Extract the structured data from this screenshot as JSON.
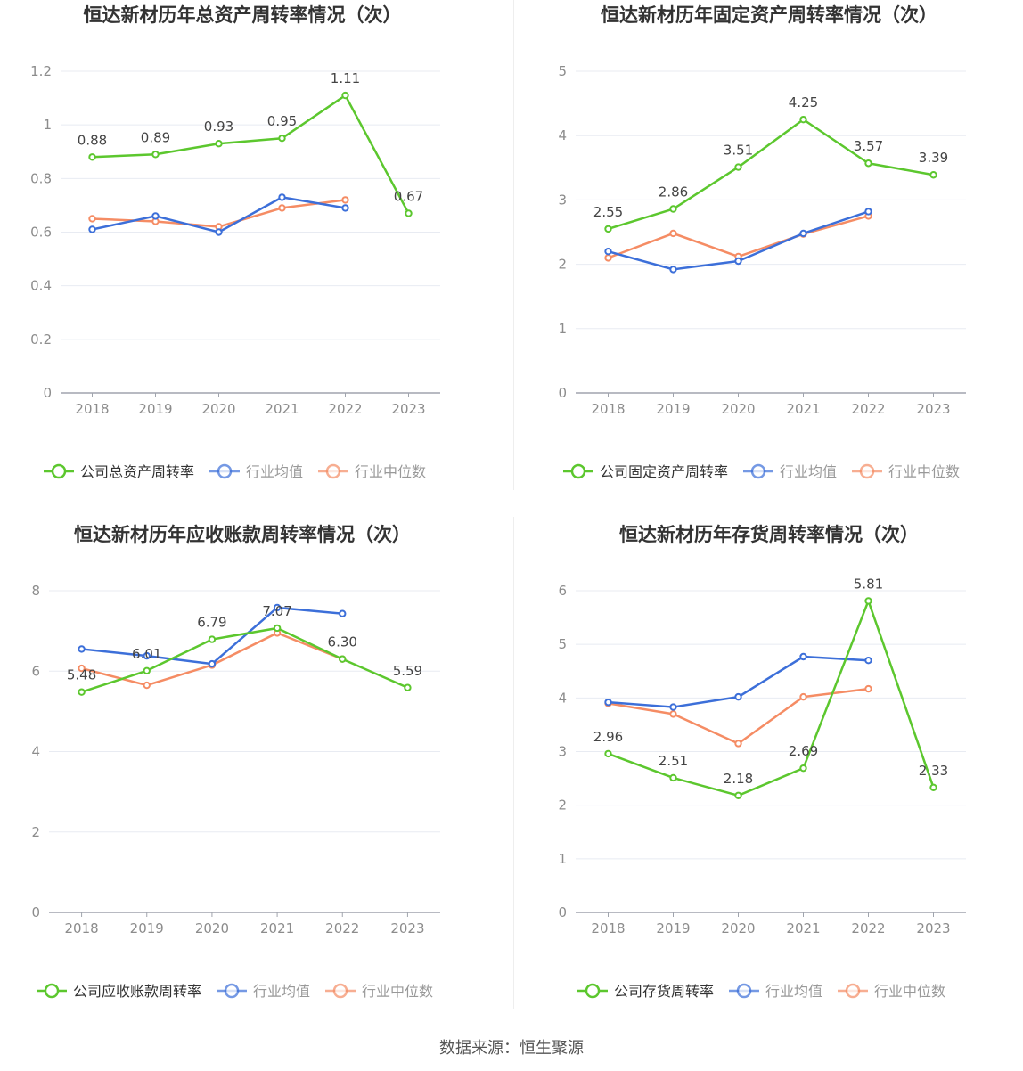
{
  "colors": {
    "company": "#5cc72e",
    "average": "#3c6fd9",
    "median": "#f58c64",
    "grid": "#e8ebf2",
    "axis": "#a0a4ad"
  },
  "footer": "数据来源：恒生聚源",
  "chart_data": [
    {
      "type": "line",
      "title": "恒达新材历年总资产周转率情况（次）",
      "categories": [
        "2018",
        "2019",
        "2020",
        "2021",
        "2022",
        "2023"
      ],
      "ylim": [
        0,
        1.2
      ],
      "yticks": [
        "0",
        "0.2",
        "0.4",
        "0.6",
        "0.8",
        "1",
        "1.2"
      ],
      "ytick_values": [
        0,
        0.2,
        0.4,
        0.6,
        0.8,
        1.0,
        1.2
      ],
      "grid": true,
      "legend_position": "bottom",
      "series": [
        {
          "name": "公司总资产周转率",
          "role": "company",
          "values": [
            0.88,
            0.89,
            0.93,
            0.95,
            1.11,
            0.67
          ],
          "labels": [
            "0.88",
            "0.89",
            "0.93",
            "0.95",
            "1.11",
            "0.67"
          ]
        },
        {
          "name": "行业均值",
          "role": "average",
          "values": [
            0.61,
            0.66,
            0.6,
            0.73,
            0.69,
            null
          ]
        },
        {
          "name": "行业中位数",
          "role": "median",
          "values": [
            0.65,
            0.64,
            0.62,
            0.69,
            0.72,
            null
          ]
        }
      ]
    },
    {
      "type": "line",
      "title": "恒达新材历年固定资产周转率情况（次）",
      "categories": [
        "2018",
        "2019",
        "2020",
        "2021",
        "2022",
        "2023"
      ],
      "ylim": [
        0,
        5
      ],
      "yticks": [
        "0",
        "1",
        "2",
        "3",
        "4",
        "5"
      ],
      "ytick_values": [
        0,
        1,
        2,
        3,
        4,
        5
      ],
      "grid": true,
      "legend_position": "bottom",
      "series": [
        {
          "name": "公司固定资产周转率",
          "role": "company",
          "values": [
            2.55,
            2.86,
            3.51,
            4.25,
            3.57,
            3.39
          ],
          "labels": [
            "2.55",
            "2.86",
            "3.51",
            "4.25",
            "3.57",
            "3.39"
          ]
        },
        {
          "name": "行业均值",
          "role": "average",
          "values": [
            2.2,
            1.92,
            2.05,
            2.48,
            2.82,
            null
          ]
        },
        {
          "name": "行业中位数",
          "role": "median",
          "values": [
            2.1,
            2.48,
            2.12,
            2.47,
            2.75,
            null
          ]
        }
      ]
    },
    {
      "type": "line",
      "title": "恒达新材历年应收账款周转率情况（次）",
      "categories": [
        "2018",
        "2019",
        "2020",
        "2021",
        "2022",
        "2023"
      ],
      "ylim": [
        0,
        8
      ],
      "yticks": [
        "0",
        "2",
        "4",
        "6",
        "8"
      ],
      "ytick_values": [
        0,
        2,
        4,
        6,
        8
      ],
      "grid": true,
      "legend_position": "bottom",
      "series": [
        {
          "name": "公司应收账款周转率",
          "role": "company",
          "values": [
            5.48,
            6.01,
            6.79,
            7.07,
            6.3,
            5.59
          ],
          "labels": [
            "5.48",
            "6.01",
            "6.79",
            "7.07",
            "6.30",
            "5.59"
          ]
        },
        {
          "name": "行业均值",
          "role": "average",
          "values": [
            6.55,
            6.38,
            6.18,
            7.58,
            7.43,
            null
          ]
        },
        {
          "name": "行业中位数",
          "role": "median",
          "values": [
            6.07,
            5.65,
            6.15,
            6.95,
            6.3,
            null
          ]
        }
      ]
    },
    {
      "type": "line",
      "title": "恒达新材历年存货周转率情况（次）",
      "categories": [
        "2018",
        "2019",
        "2020",
        "2021",
        "2022",
        "2023"
      ],
      "ylim": [
        0,
        6
      ],
      "yticks": [
        "0",
        "1",
        "2",
        "3",
        "4",
        "5",
        "6"
      ],
      "ytick_values": [
        0,
        1,
        2,
        3,
        4,
        5,
        6
      ],
      "grid": true,
      "legend_position": "bottom",
      "series": [
        {
          "name": "公司存货周转率",
          "role": "company",
          "values": [
            2.96,
            2.51,
            2.18,
            2.69,
            5.81,
            2.33
          ],
          "labels": [
            "2.96",
            "2.51",
            "2.18",
            "2.69",
            "5.81",
            "2.33"
          ]
        },
        {
          "name": "行业均值",
          "role": "average",
          "values": [
            3.92,
            3.83,
            4.02,
            4.77,
            4.7,
            null
          ]
        },
        {
          "name": "行业中位数",
          "role": "median",
          "values": [
            3.9,
            3.7,
            3.15,
            4.02,
            4.17,
            null
          ]
        }
      ]
    }
  ]
}
